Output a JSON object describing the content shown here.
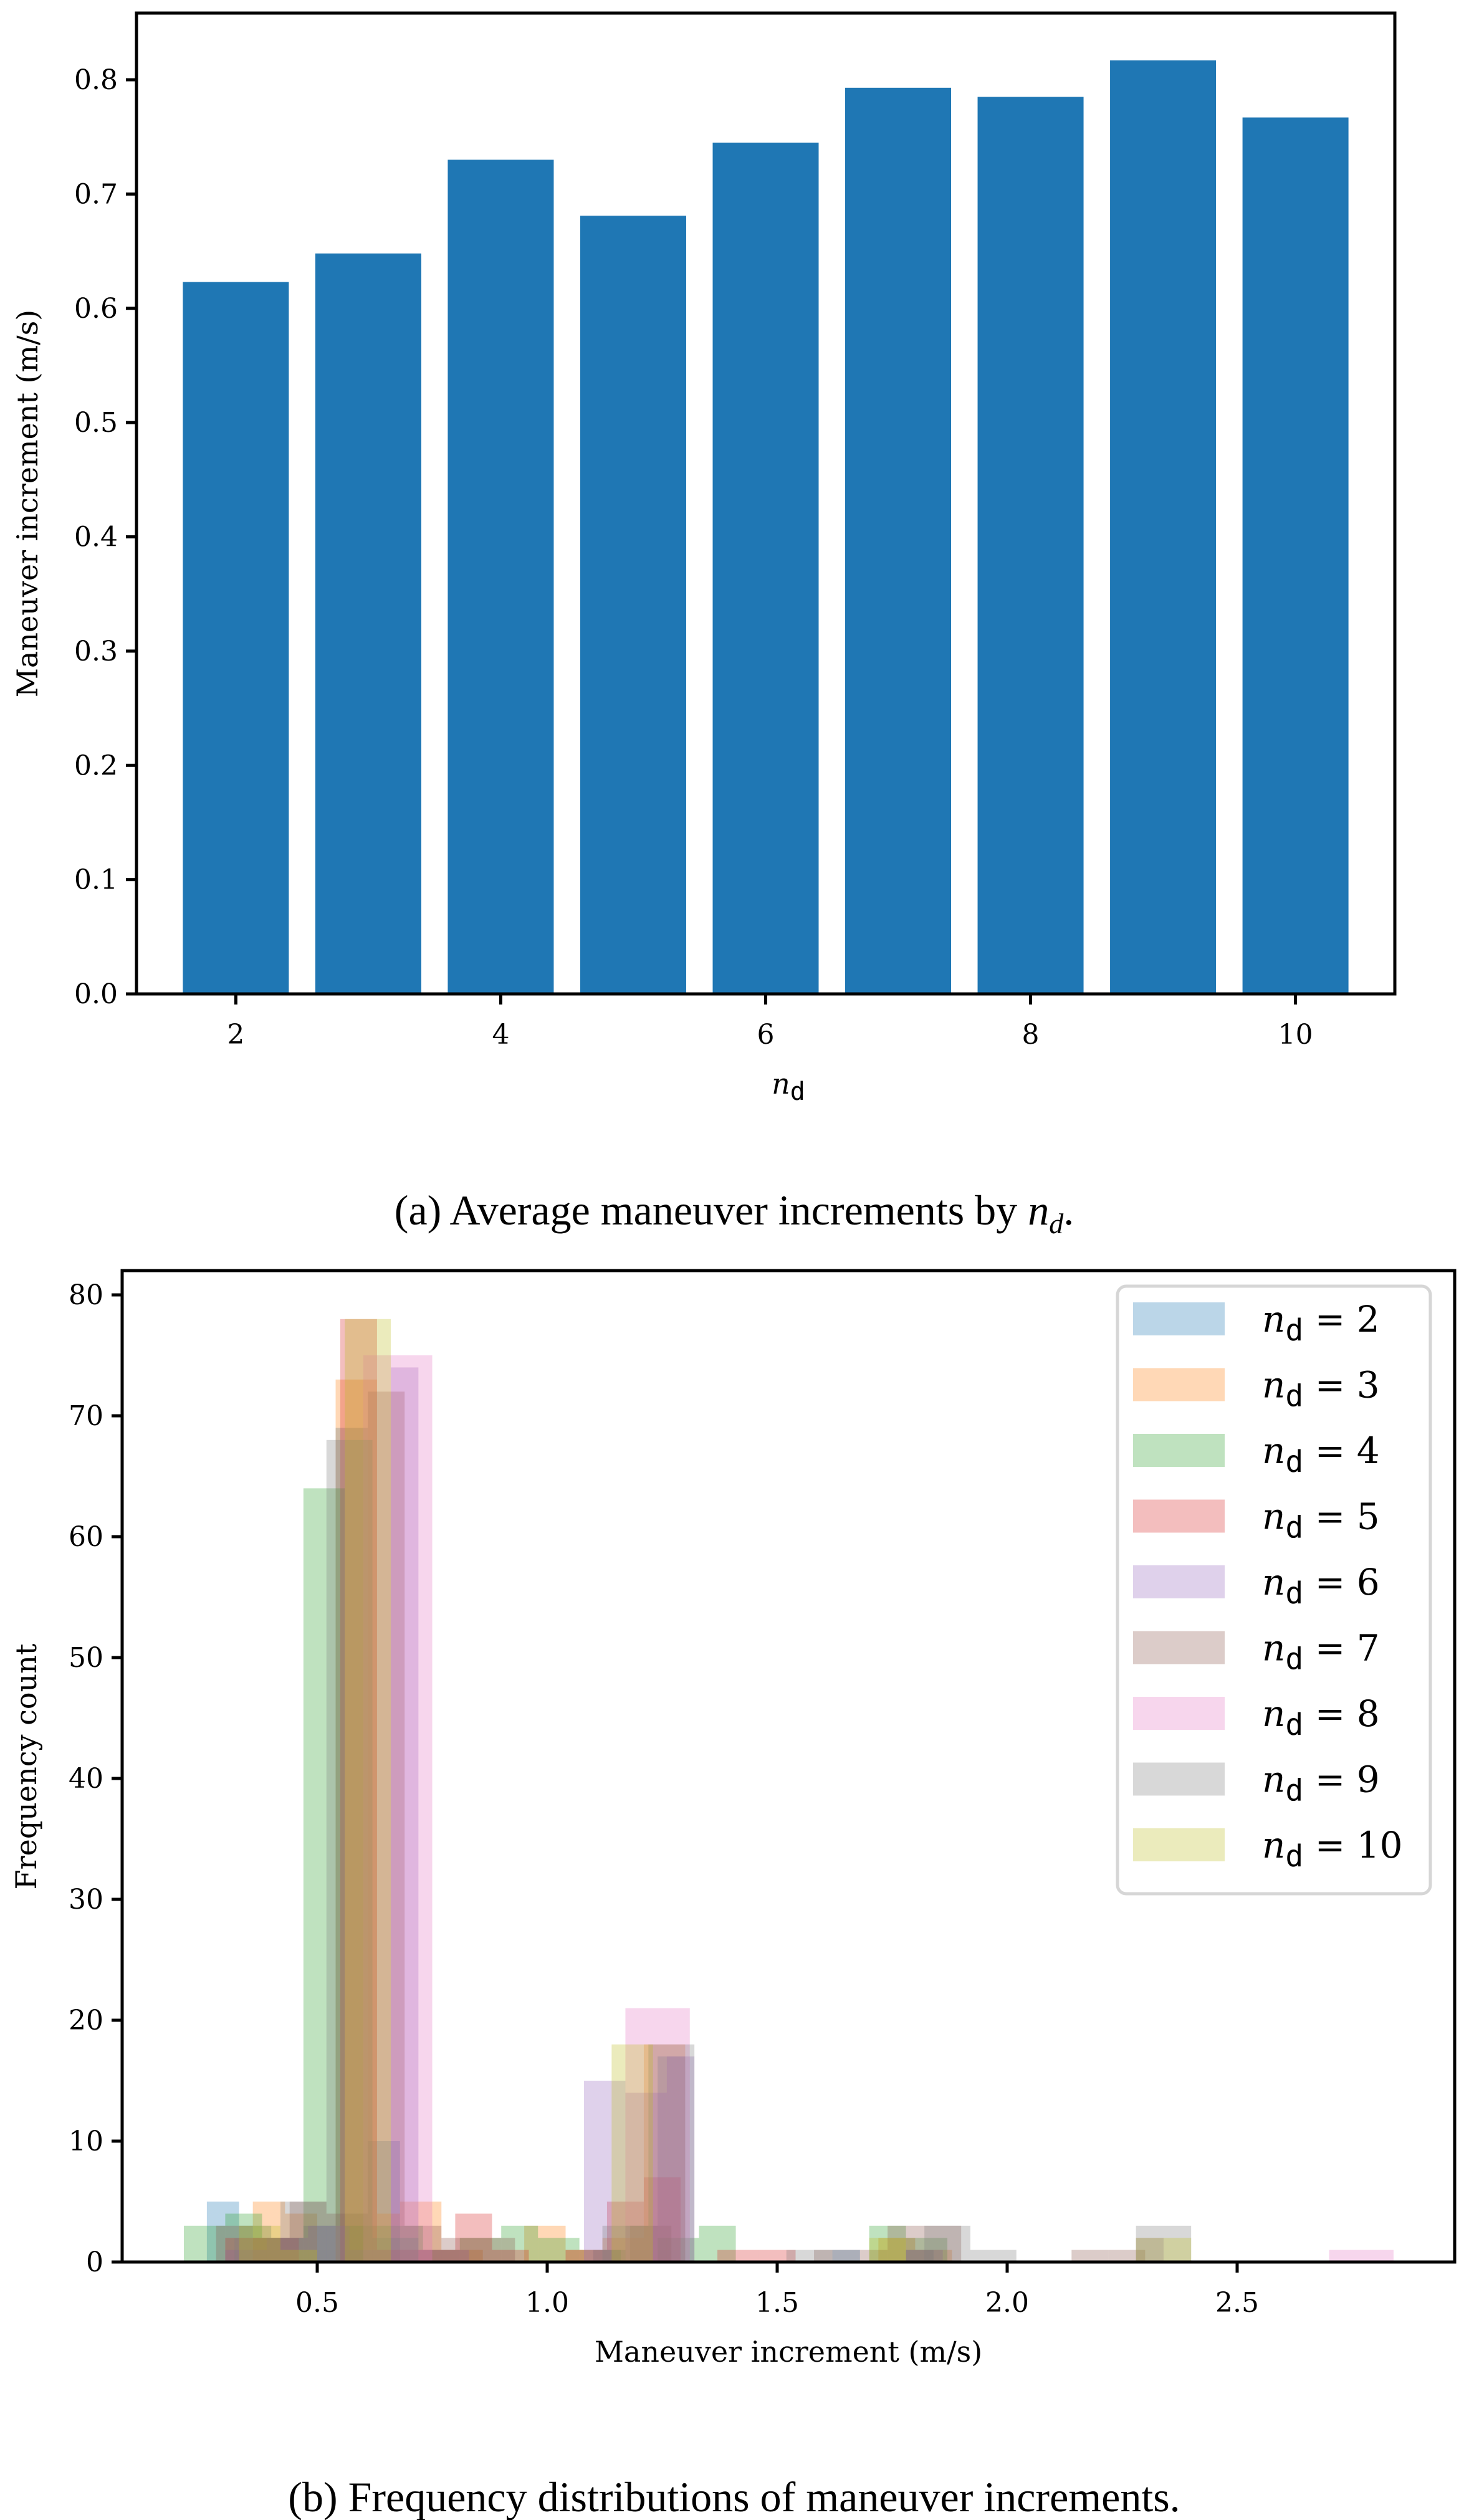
{
  "figure": {
    "caption_a": "(a) Average maneuver increments by n_d.",
    "caption_a_prefix": "(a) Average maneuver increments by ",
    "caption_a_var": "n",
    "caption_a_sub": "d",
    "caption_a_suffix": ".",
    "caption_b": "(b) Frequency distributions of maneuver increments."
  },
  "chart_data": [
    {
      "type": "bar",
      "title": "",
      "xlabel": "n_d",
      "xlabel_main": "n",
      "xlabel_sub": "d",
      "ylabel": "Maneuver increment (m/s)",
      "categories": [
        2,
        3,
        4,
        5,
        6,
        7,
        8,
        9,
        10
      ],
      "values": [
        0.623,
        0.648,
        0.73,
        0.681,
        0.745,
        0.793,
        0.785,
        0.817,
        0.767
      ],
      "xticks": [
        "2",
        "4",
        "6",
        "8",
        "10"
      ],
      "xtick_values": [
        2,
        4,
        6,
        8,
        10
      ],
      "yticks": [
        "0.0",
        "0.1",
        "0.2",
        "0.3",
        "0.4",
        "0.5",
        "0.6",
        "0.7",
        "0.8"
      ],
      "ylim": [
        0,
        0.857
      ],
      "xlim": [
        1.25,
        10.75
      ],
      "grid": false,
      "color": "#1f77b4"
    },
    {
      "type": "bar",
      "subtype": "overlaid_histogram",
      "title": "",
      "xlabel": "Maneuver increment (m/s)",
      "ylabel": "Frequency count",
      "xticks": [
        "0.5",
        "1.0",
        "1.5",
        "2.0",
        "2.5"
      ],
      "xtick_values": [
        0.5,
        1.0,
        1.5,
        2.0,
        2.5
      ],
      "yticks": [
        "0",
        "10",
        "20",
        "30",
        "40",
        "50",
        "60",
        "70",
        "80"
      ],
      "ytick_values": [
        0,
        10,
        20,
        30,
        40,
        50,
        60,
        70,
        80
      ],
      "xlim": [
        0.12,
        2.94
      ],
      "ylim": [
        0,
        82
      ],
      "grid": false,
      "alpha": 0.3,
      "legend_position": "upper right",
      "series": [
        {
          "name": "n_d = 2",
          "label_value": "2",
          "color": "#1f77b4",
          "bins": [
            [
              0.26,
              0.33,
              5
            ],
            [
              0.33,
              0.4,
              3
            ],
            [
              0.4,
              0.47,
              2
            ],
            [
              0.47,
              0.54,
              3
            ],
            [
              0.54,
              0.61,
              69
            ],
            [
              0.61,
              0.68,
              10
            ],
            [
              1.1,
              1.17,
              1
            ],
            [
              1.17,
              1.24,
              3
            ],
            [
              1.24,
              1.3,
              17
            ],
            [
              1.62,
              1.68,
              1
            ],
            [
              1.78,
              1.84,
              1
            ]
          ]
        },
        {
          "name": "n_d = 3",
          "label_value": "3",
          "color": "#ff7f0e",
          "bins": [
            [
              0.36,
              0.43,
              5
            ],
            [
              0.43,
              0.5,
              4
            ],
            [
              0.54,
              0.63,
              73
            ],
            [
              0.63,
              0.68,
              4
            ],
            [
              0.68,
              0.77,
              5
            ],
            [
              0.77,
              0.86,
              1
            ],
            [
              0.95,
              1.04,
              3
            ],
            [
              1.04,
              1.12,
              1
            ],
            [
              1.12,
              1.21,
              2
            ],
            [
              1.21,
              1.3,
              18
            ],
            [
              1.72,
              1.8,
              2
            ],
            [
              1.8,
              1.88,
              1
            ]
          ]
        },
        {
          "name": "n_d = 4",
          "label_value": "4",
          "color": "#2ca02c",
          "bins": [
            [
              0.21,
              0.3,
              3
            ],
            [
              0.3,
              0.38,
              4
            ],
            [
              0.38,
              0.47,
              2
            ],
            [
              0.47,
              0.56,
              64
            ],
            [
              0.56,
              0.64,
              3
            ],
            [
              0.64,
              0.73,
              3
            ],
            [
              0.73,
              0.81,
              1
            ],
            [
              0.81,
              0.9,
              2
            ],
            [
              0.9,
              0.98,
              3
            ],
            [
              0.98,
              1.07,
              2
            ],
            [
              1.07,
              1.16,
              1
            ],
            [
              1.24,
              1.33,
              2
            ],
            [
              1.33,
              1.41,
              3
            ],
            [
              1.7,
              1.78,
              3
            ],
            [
              1.78,
              1.87,
              2
            ]
          ]
        },
        {
          "name": "n_d = 5",
          "label_value": "5",
          "color": "#d62728",
          "bins": [
            [
              0.3,
              0.38,
              2
            ],
            [
              0.38,
              0.46,
              2
            ],
            [
              0.55,
              0.63,
              78
            ],
            [
              0.63,
              0.72,
              1
            ],
            [
              0.72,
              0.8,
              1
            ],
            [
              0.8,
              0.88,
              4
            ],
            [
              0.88,
              0.96,
              1
            ],
            [
              1.04,
              1.13,
              1
            ],
            [
              1.13,
              1.21,
              5
            ],
            [
              1.21,
              1.29,
              7
            ],
            [
              1.37,
              1.46,
              1
            ],
            [
              1.46,
              1.54,
              1
            ]
          ]
        },
        {
          "name": "n_d = 6",
          "label_value": "6",
          "color": "#9467bd",
          "bins": [
            [
              0.3,
              0.39,
              1
            ],
            [
              0.39,
              0.48,
              2
            ],
            [
              0.48,
              0.57,
              3
            ],
            [
              0.57,
              0.66,
              1
            ],
            [
              0.66,
              0.72,
              74
            ],
            [
              0.72,
              0.83,
              1
            ],
            [
              1.08,
              1.17,
              15
            ],
            [
              1.17,
              1.26,
              14
            ],
            [
              1.26,
              1.32,
              17
            ],
            [
              1.78,
              1.86,
              1
            ],
            [
              2.28,
              2.34,
              2
            ]
          ]
        },
        {
          "name": "n_d = 7",
          "label_value": "7",
          "color": "#8c564b",
          "bins": [
            [
              0.28,
              0.36,
              3
            ],
            [
              0.36,
              0.44,
              2
            ],
            [
              0.44,
              0.52,
              5
            ],
            [
              0.52,
              0.61,
              4
            ],
            [
              0.61,
              0.69,
              72
            ],
            [
              0.69,
              0.77,
              3
            ],
            [
              0.77,
              0.85,
              2
            ],
            [
              0.85,
              0.93,
              2
            ],
            [
              1.18,
              1.27,
              3
            ],
            [
              1.58,
              1.66,
              1
            ],
            [
              1.66,
              1.74,
              1
            ],
            [
              1.74,
              1.82,
              3
            ],
            [
              1.82,
              1.9,
              3
            ],
            [
              2.14,
              2.22,
              1
            ],
            [
              2.22,
              2.3,
              1
            ]
          ]
        },
        {
          "name": "n_d = 8",
          "label_value": "8",
          "color": "#e377c2",
          "bins": [
            [
              0.6,
              0.75,
              75
            ],
            [
              1.17,
              1.31,
              21
            ],
            [
              2.7,
              2.84,
              1
            ]
          ]
        },
        {
          "name": "n_d = 9",
          "label_value": "9",
          "color": "#7f7f7f",
          "bins": [
            [
              0.32,
              0.42,
              2
            ],
            [
              0.42,
              0.52,
              5
            ],
            [
              0.52,
              0.62,
              68
            ],
            [
              0.62,
              0.72,
              2
            ],
            [
              1.12,
              1.22,
              3
            ],
            [
              1.22,
              1.32,
              18
            ],
            [
              1.52,
              1.62,
              1
            ],
            [
              1.82,
              1.92,
              3
            ],
            [
              1.92,
              2.02,
              1
            ],
            [
              2.28,
              2.4,
              3
            ]
          ]
        },
        {
          "name": "n_d = 10",
          "label_value": "10",
          "color": "#bcbd22",
          "bins": [
            [
              0.33,
              0.42,
              3
            ],
            [
              0.42,
              0.5,
              1
            ],
            [
              0.56,
              0.66,
              78
            ],
            [
              1.14,
              1.23,
              18
            ],
            [
              1.7,
              1.78,
              2
            ],
            [
              2.28,
              2.4,
              2
            ]
          ]
        }
      ]
    }
  ]
}
